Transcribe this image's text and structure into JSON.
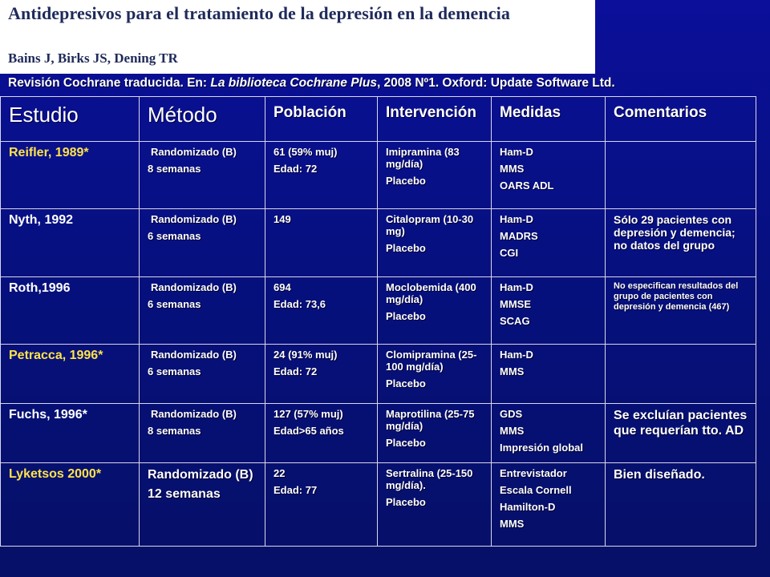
{
  "header": {
    "title": "Antidepresivos para el tratamiento de la depresión en la demencia",
    "authors": "Bains J, Birks JS, Dening TR"
  },
  "citation": {
    "prefix": "Revisión Cochrane traducida. En: ",
    "italic": "La biblioteca Cochrane Plus",
    "suffix": ", 2008 Nº1. Oxford: Update Software Ltd."
  },
  "table": {
    "headers": [
      "Estudio",
      "Método",
      "Población",
      "Intervención",
      "Medidas",
      "Comentarios"
    ],
    "rows": [
      {
        "estudio": "Reifler, 1989*",
        "metodo": [
          "Randomizado (B)",
          "8 semanas"
        ],
        "poblacion": [
          "61 (59% muj)",
          "Edad: 72"
        ],
        "intervencion": [
          "Imipramina (83 mg/día)",
          "Placebo"
        ],
        "medidas": [
          "Ham-D",
          "MMS",
          "OARS ADL"
        ],
        "comentarios": ""
      },
      {
        "estudio": "Nyth, 1992",
        "metodo": [
          "Randomizado (B)",
          "6 semanas"
        ],
        "poblacion": [
          "149"
        ],
        "intervencion": [
          "Citalopram (10-30 mg)",
          "Placebo"
        ],
        "medidas": [
          "Ham-D",
          "MADRS",
          "CGI"
        ],
        "comentarios": "Sólo 29 pacientes con depresión y demencia; no datos del grupo"
      },
      {
        "estudio": "Roth,1996",
        "metodo": [
          "Randomizado (B)",
          "6 semanas"
        ],
        "poblacion": [
          "694",
          "Edad: 73,6"
        ],
        "intervencion": [
          "Moclobemida (400 mg/día)",
          "Placebo"
        ],
        "medidas": [
          "Ham-D",
          "MMSE",
          "SCAG"
        ],
        "comentarios": "No especifican resultados del grupo de pacientes con depresión y demencia (467)"
      },
      {
        "estudio": "Petracca, 1996*",
        "metodo": [
          "Randomizado (B)",
          "6 semanas"
        ],
        "poblacion": [
          "24 (91% muj)",
          "Edad: 72"
        ],
        "intervencion": [
          "Clomipramina (25-100 mg/día)",
          "Placebo"
        ],
        "medidas": [
          "Ham-D",
          "MMS"
        ],
        "comentarios": ""
      },
      {
        "estudio": "Fuchs, 1996*",
        "metodo": [
          "Randomizado (B)",
          "8 semanas"
        ],
        "poblacion": [
          "127 (57% muj)",
          "Edad>65 años"
        ],
        "intervencion": [
          "Maprotilina (25-75 mg/día)",
          "Placebo"
        ],
        "medidas": [
          "GDS",
          "MMS",
          "Impresión global"
        ],
        "comentarios": "Se excluían pacientes que requerían tto. AD"
      },
      {
        "estudio": "Lyketsos 2000*",
        "metodo": [
          "Randomizado (B)",
          "12 semanas"
        ],
        "poblacion": [
          "22",
          "Edad: 77"
        ],
        "intervencion": [
          "Sertralina (25-150 mg/día).",
          "Placebo"
        ],
        "medidas": [
          "Entrevistador",
          "Escala Cornell",
          "Hamilton-D",
          "MMS"
        ],
        "comentarios": "Bien diseñado."
      }
    ]
  }
}
